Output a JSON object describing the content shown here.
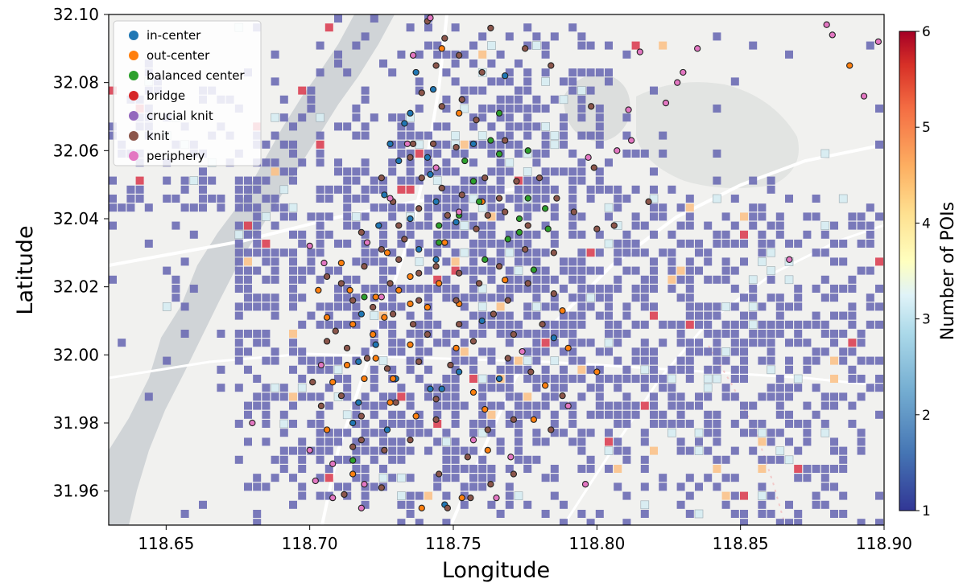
{
  "chart_data": {
    "type": "scatter",
    "title": "",
    "xlabel": "Longitude",
    "ylabel": "Latitude",
    "xlim": [
      118.63,
      118.9
    ],
    "ylim": [
      31.95,
      32.1
    ],
    "xticks": [
      "118.65",
      "118.70",
      "118.75",
      "118.80",
      "118.85",
      "118.90"
    ],
    "yticks": [
      "31.96",
      "31.98",
      "32.00",
      "32.02",
      "32.04",
      "32.06",
      "32.08",
      "32.10"
    ],
    "grid": false,
    "legend_position": "top-left",
    "background": "light street basemap (river on the west, lake in the north-east)",
    "series": [
      {
        "name": "in-center",
        "color": "#1f77b4",
        "points": [
          [
            118.733,
            32.068
          ],
          [
            118.737,
            32.083
          ],
          [
            118.731,
            32.057
          ],
          [
            118.742,
            32.053
          ],
          [
            118.726,
            32.047
          ],
          [
            118.751,
            32.039
          ],
          [
            118.738,
            32.031
          ],
          [
            118.757,
            32.062
          ],
          [
            118.735,
            32.071
          ],
          [
            118.744,
            32.045
          ],
          [
            118.717,
            31.998
          ],
          [
            118.73,
            31.993
          ],
          [
            118.742,
            31.99
          ],
          [
            118.746,
            31.99
          ],
          [
            118.747,
            31.956
          ],
          [
            118.727,
            31.978
          ],
          [
            118.717,
            31.986
          ],
          [
            118.752,
            31.995
          ],
          [
            118.743,
            32.078
          ],
          [
            118.768,
            32.082
          ],
          [
            118.744,
            32.028
          ],
          [
            118.724,
            32.038
          ],
          [
            118.718,
            32.012
          ],
          [
            118.723,
            32.003
          ],
          [
            118.715,
            31.98
          ],
          [
            118.735,
            32.04
          ],
          [
            118.728,
            32.062
          ],
          [
            118.741,
            32.058
          ],
          [
            118.76,
            32.01
          ],
          [
            118.785,
            32.005
          ],
          [
            118.766,
            31.993
          ]
        ]
      },
      {
        "name": "out-center",
        "color": "#ff7f0e",
        "points": [
          [
            118.708,
            31.992
          ],
          [
            118.713,
            31.997
          ],
          [
            118.719,
            31.993
          ],
          [
            118.722,
            32.006
          ],
          [
            118.726,
            32.011
          ],
          [
            118.731,
            32.019
          ],
          [
            118.735,
            32.023
          ],
          [
            118.741,
            32.014
          ],
          [
            118.728,
            31.986
          ],
          [
            118.714,
            32.019
          ],
          [
            118.735,
            32.003
          ],
          [
            118.706,
            31.978
          ],
          [
            118.723,
            31.999
          ],
          [
            118.751,
            32.002
          ],
          [
            118.757,
            31.989
          ],
          [
            118.761,
            31.984
          ],
          [
            118.778,
            31.981
          ],
          [
            118.715,
            31.965
          ],
          [
            118.739,
            31.955
          ],
          [
            118.753,
            31.958
          ],
          [
            118.888,
            32.085
          ],
          [
            118.79,
            32.002
          ],
          [
            118.706,
            32.011
          ],
          [
            118.715,
            32.009
          ],
          [
            118.727,
            32.03
          ],
          [
            118.747,
            32.033
          ],
          [
            118.762,
            31.972
          ],
          [
            118.723,
            32.017
          ],
          [
            118.729,
            31.993
          ],
          [
            118.737,
            31.982
          ],
          [
            118.745,
            32.021
          ],
          [
            118.752,
            32.015
          ],
          [
            118.703,
            32.019
          ],
          [
            118.768,
            32.022
          ],
          [
            118.782,
            31.991
          ],
          [
            118.8,
            31.995
          ],
          [
            118.788,
            32.013
          ],
          [
            118.711,
            32.027
          ],
          [
            118.735,
            32.015
          ],
          [
            118.76,
            32.045
          ],
          [
            118.746,
            32.09
          ],
          [
            118.752,
            32.071
          ]
        ]
      },
      {
        "name": "balanced center",
        "color": "#2ca02c",
        "points": [
          [
            118.754,
            32.057
          ],
          [
            118.763,
            32.063
          ],
          [
            118.766,
            32.059
          ],
          [
            118.776,
            32.06
          ],
          [
            118.769,
            32.034
          ],
          [
            118.776,
            32.046
          ],
          [
            118.773,
            32.04
          ],
          [
            118.752,
            32.041
          ],
          [
            118.757,
            32.051
          ],
          [
            118.783,
            32.037
          ],
          [
            118.766,
            32.071
          ],
          [
            118.773,
            32.036
          ],
          [
            118.782,
            32.043
          ],
          [
            118.745,
            32.038
          ],
          [
            118.761,
            32.028
          ],
          [
            118.715,
            31.969
          ],
          [
            118.719,
            32.017
          ],
          [
            118.745,
            32.033
          ],
          [
            118.778,
            32.025
          ],
          [
            118.759,
            32.045
          ]
        ]
      },
      {
        "name": "bridge",
        "color": "#d62728",
        "points": []
      },
      {
        "name": "crucial knit",
        "color": "#9467bd",
        "points": []
      },
      {
        "name": "knit",
        "color": "#8c564b",
        "points": [
          [
            118.741,
            32.098
          ],
          [
            118.747,
            32.093
          ],
          [
            118.752,
            32.088
          ],
          [
            118.76,
            32.083
          ],
          [
            118.739,
            32.077
          ],
          [
            118.746,
            32.073
          ],
          [
            118.758,
            32.069
          ],
          [
            118.768,
            32.063
          ],
          [
            118.751,
            32.061
          ],
          [
            118.743,
            32.062
          ],
          [
            118.736,
            32.062
          ],
          [
            118.739,
            32.052
          ],
          [
            118.746,
            32.049
          ],
          [
            118.753,
            32.047
          ],
          [
            118.761,
            32.052
          ],
          [
            118.772,
            32.051
          ],
          [
            118.78,
            32.052
          ],
          [
            118.729,
            32.045
          ],
          [
            118.731,
            32.038
          ],
          [
            118.738,
            32.043
          ],
          [
            118.748,
            32.041
          ],
          [
            118.758,
            32.037
          ],
          [
            118.768,
            32.042
          ],
          [
            118.776,
            32.038
          ],
          [
            118.785,
            32.03
          ],
          [
            118.792,
            32.042
          ],
          [
            118.8,
            32.037
          ],
          [
            118.806,
            32.038
          ],
          [
            118.718,
            32.036
          ],
          [
            118.725,
            32.031
          ],
          [
            118.731,
            32.028
          ],
          [
            118.738,
            32.024
          ],
          [
            118.744,
            32.026
          ],
          [
            118.752,
            32.024
          ],
          [
            118.759,
            32.021
          ],
          [
            118.766,
            32.026
          ],
          [
            118.776,
            32.021
          ],
          [
            118.785,
            32.018
          ],
          [
            118.711,
            32.021
          ],
          [
            118.706,
            32.023
          ],
          [
            118.715,
            32.016
          ],
          [
            118.722,
            32.014
          ],
          [
            118.729,
            32.012
          ],
          [
            118.736,
            32.009
          ],
          [
            118.741,
            32.006
          ],
          [
            118.752,
            32.009
          ],
          [
            118.764,
            32.012
          ],
          [
            118.771,
            32.006
          ],
          [
            118.781,
            32.009
          ],
          [
            118.706,
            32.004
          ],
          [
            118.713,
            32.002
          ],
          [
            118.72,
            31.999
          ],
          [
            118.727,
            31.996
          ],
          [
            118.738,
            31.998
          ],
          [
            118.749,
            31.997
          ],
          [
            118.757,
            32.004
          ],
          [
            118.769,
            31.999
          ],
          [
            118.777,
            31.995
          ],
          [
            118.788,
            31.988
          ],
          [
            118.704,
            31.985
          ],
          [
            118.711,
            31.988
          ],
          [
            118.718,
            31.982
          ],
          [
            118.73,
            31.986
          ],
          [
            118.744,
            31.987
          ],
          [
            118.771,
            31.981
          ],
          [
            118.784,
            31.978
          ],
          [
            118.726,
            31.972
          ],
          [
            118.735,
            31.975
          ],
          [
            118.745,
            31.965
          ],
          [
            118.755,
            31.97
          ],
          [
            118.763,
            31.962
          ],
          [
            118.771,
            31.965
          ],
          [
            118.748,
            31.955
          ],
          [
            118.756,
            31.958
          ],
          [
            118.725,
            31.961
          ],
          [
            118.712,
            31.959
          ],
          [
            118.775,
            32.09
          ],
          [
            118.784,
            32.085
          ],
          [
            118.763,
            32.096
          ],
          [
            118.744,
            32.085
          ],
          [
            118.798,
            32.073
          ],
          [
            118.799,
            32.055
          ],
          [
            118.818,
            32.045
          ],
          [
            118.753,
            32.075
          ],
          [
            118.728,
            32.021
          ],
          [
            118.733,
            32.034
          ],
          [
            118.762,
            32.041
          ],
          [
            118.786,
            32.046
          ],
          [
            118.709,
            32.007
          ],
          [
            118.719,
            32.026
          ],
          [
            118.751,
            32.016
          ],
          [
            118.769,
            32.016
          ],
          [
            118.738,
            32.016
          ],
          [
            118.744,
            31.981
          ],
          [
            118.762,
            31.978
          ],
          [
            118.718,
            31.975
          ],
          [
            118.701,
            31.992
          ],
          [
            118.715,
            31.973
          ],
          [
            118.725,
            32.052
          ],
          [
            118.735,
            32.058
          ],
          [
            118.766,
            32.046
          ],
          [
            118.775,
            32.031
          ]
        ]
      },
      {
        "name": "periphery",
        "color": "#e377c2",
        "points": [
          [
            118.705,
            32.027
          ],
          [
            118.7,
            32.032
          ],
          [
            118.68,
            31.98
          ],
          [
            118.702,
            31.963
          ],
          [
            118.708,
            31.958
          ],
          [
            118.718,
            31.955
          ],
          [
            118.728,
            32.046
          ],
          [
            118.742,
            32.099
          ],
          [
            118.741,
            32.101
          ],
          [
            118.797,
            32.058
          ],
          [
            118.811,
            32.072
          ],
          [
            118.815,
            32.089
          ],
          [
            118.83,
            32.083
          ],
          [
            118.88,
            32.097
          ],
          [
            118.882,
            32.094
          ],
          [
            118.893,
            32.076
          ],
          [
            118.898,
            32.092
          ],
          [
            118.867,
            32.028
          ],
          [
            118.77,
            31.97
          ],
          [
            118.796,
            31.962
          ],
          [
            118.736,
            32.088
          ],
          [
            118.72,
            32.033
          ],
          [
            118.725,
            32.017
          ],
          [
            118.704,
            31.997
          ],
          [
            118.734,
            32.062
          ],
          [
            118.752,
            32.042
          ],
          [
            118.774,
            32.001
          ],
          [
            118.765,
            31.958
          ],
          [
            118.79,
            31.985
          ],
          [
            118.807,
            32.06
          ],
          [
            118.812,
            32.063
          ],
          [
            118.824,
            32.074
          ],
          [
            118.828,
            32.08
          ],
          [
            118.835,
            32.09
          ],
          [
            118.708,
            31.968
          ],
          [
            118.7,
            31.972
          ],
          [
            118.757,
            31.975
          ],
          [
            118.719,
            31.962
          ],
          [
            118.744,
            32.055
          ]
        ]
      }
    ],
    "colorbar": {
      "label": "Number of POIs",
      "min": 1,
      "max": 6,
      "ticks": [
        "1",
        "2",
        "3",
        "4",
        "5",
        "6"
      ],
      "colormap": "RdYlBu_r"
    },
    "grid_cells": {
      "cell_size_deg": 0.0035,
      "description": "Small squares colored by number of POIs in each cell; most cells have 1 POI (dark blue-purple), some 3 (light blue), a few 4-6 (orange / red)"
    }
  },
  "colors": {
    "background": "#f0f0ee",
    "water": "#cfd3d6",
    "roads": "#ffffff",
    "cell_low": "#6a6aaf",
    "marker_edge": "#222222"
  }
}
